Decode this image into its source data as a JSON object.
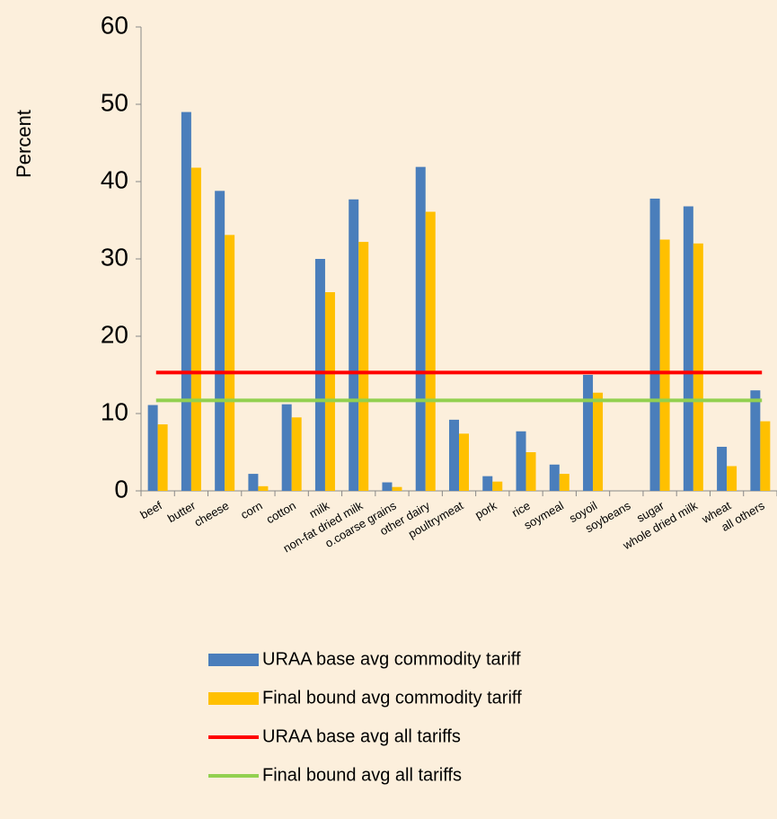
{
  "chart_data": {
    "type": "bar",
    "ylabel": "Percent",
    "categories": [
      "beef",
      "butter",
      "cheese",
      "corn",
      "cotton",
      "milk",
      "non-fat dried milk",
      "o.coarse grains",
      "other dairy",
      "poultrymeat",
      "pork",
      "rice",
      "soymeal",
      "soyoil",
      "soybeans",
      "sugar",
      "whole dried milk",
      "wheat",
      "all others"
    ],
    "series": [
      {
        "name": "URAA base avg commodity tariff",
        "color": "#4a7ebb",
        "values": [
          11.1,
          49,
          38.8,
          2.2,
          11.2,
          30,
          37.7,
          1.1,
          41.9,
          9.2,
          1.9,
          7.7,
          3.4,
          15,
          0,
          37.8,
          36.8,
          5.7,
          13
        ]
      },
      {
        "name": "Final bound avg commodity tariff",
        "color": "#ffc000",
        "values": [
          8.6,
          41.8,
          33.1,
          0.6,
          9.5,
          25.7,
          32.2,
          0.5,
          36.1,
          7.4,
          1.2,
          5,
          2.2,
          12.7,
          0,
          32.5,
          32,
          3.2,
          9
        ]
      },
      {
        "name": "URAA base avg all tariffs",
        "color": "#ff0000",
        "type": "line",
        "value": 15.3
      },
      {
        "name": "Final bound avg all tariffs",
        "color": "#92d050",
        "type": "line",
        "value": 11.7
      }
    ],
    "ylim": [
      0,
      60
    ],
    "yticks": [
      0,
      10,
      20,
      30,
      40,
      50,
      60
    ],
    "legend": "bottom"
  }
}
